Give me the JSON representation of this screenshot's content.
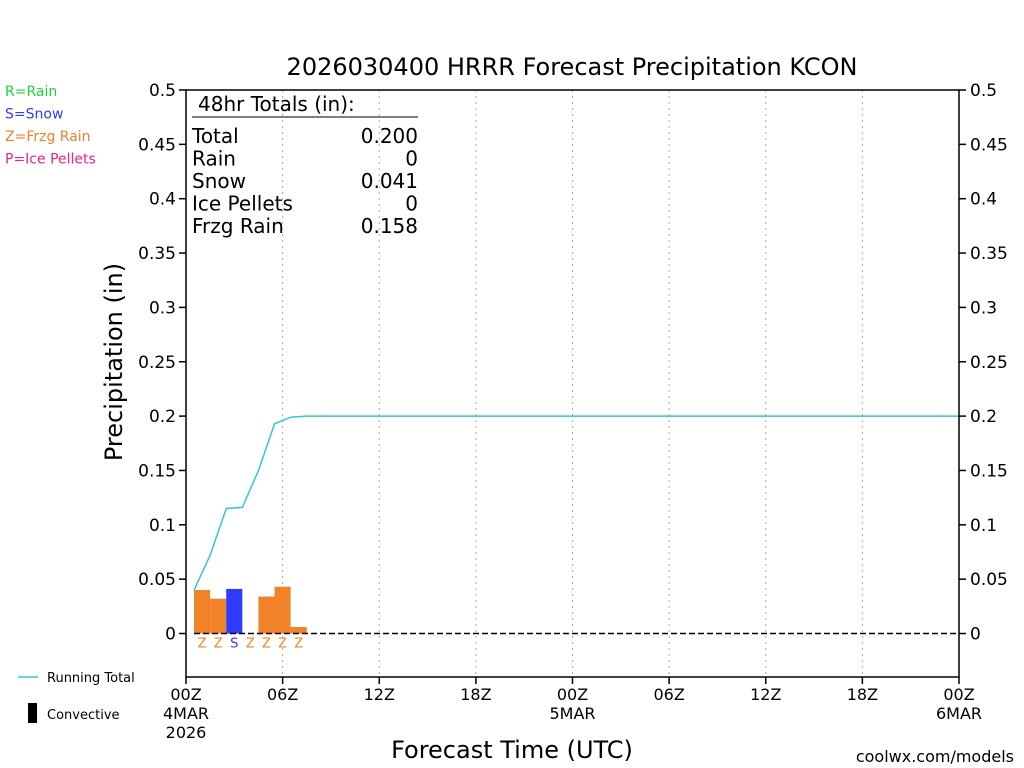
{
  "chart_data": {
    "type": "bar",
    "title": "2026030400 HRRR Forecast Precipitation KCON",
    "xlabel": "Forecast Time (UTC)",
    "ylabel": "Precipitation (in)",
    "ylim": [
      -0.04,
      0.5
    ],
    "yticks": [
      0,
      0.05,
      0.1,
      0.15,
      0.2,
      0.25,
      0.3,
      0.35,
      0.4,
      0.45,
      0.5
    ],
    "ytick_labels": [
      "0",
      "0.05",
      "0.1",
      "0.15",
      "0.2",
      "0.25",
      "0.3",
      "0.35",
      "0.4",
      "0.45",
      "0.5"
    ],
    "xlim": [
      0,
      48
    ],
    "xticks": [
      {
        "hour": 0,
        "lines": [
          "00Z",
          "4MAR",
          "2026"
        ]
      },
      {
        "hour": 6,
        "lines": [
          "06Z"
        ]
      },
      {
        "hour": 12,
        "lines": [
          "12Z"
        ]
      },
      {
        "hour": 18,
        "lines": [
          "18Z"
        ]
      },
      {
        "hour": 24,
        "lines": [
          "00Z",
          "5MAR"
        ]
      },
      {
        "hour": 30,
        "lines": [
          "06Z"
        ]
      },
      {
        "hour": 36,
        "lines": [
          "12Z"
        ]
      },
      {
        "hour": 42,
        "lines": [
          "18Z"
        ]
      },
      {
        "hour": 48,
        "lines": [
          "00Z",
          "6MAR"
        ]
      }
    ],
    "grid": "vertical dotted",
    "bars": [
      {
        "hour": 1,
        "value": 0.04,
        "type": "Z"
      },
      {
        "hour": 2,
        "value": 0.032,
        "type": "Z"
      },
      {
        "hour": 3,
        "value": 0.041,
        "type": "S"
      },
      {
        "hour": 4,
        "value": 0.0,
        "type": "Z"
      },
      {
        "hour": 5,
        "value": 0.034,
        "type": "Z"
      },
      {
        "hour": 6,
        "value": 0.043,
        "type": "Z"
      },
      {
        "hour": 7,
        "value": 0.006,
        "type": "Z"
      }
    ],
    "running_total": {
      "hours": [
        0.5,
        1.5,
        2.5,
        3.5,
        4.5,
        5.5,
        6.5,
        7.5,
        48
      ],
      "values": [
        0.04,
        0.072,
        0.115,
        0.116,
        0.15,
        0.193,
        0.199,
        0.2,
        0.2
      ]
    },
    "colors": {
      "rain": "#22d13a",
      "snow": "#2d3cff",
      "frzg_rain": "#f08228",
      "ice_pellets": "#e6238c",
      "running_total": "#35c8c8",
      "convective": "#000000",
      "credit": "#d2282d"
    }
  },
  "legend_types": [
    {
      "key": "R",
      "label": "R=Rain",
      "color": "#22d13a"
    },
    {
      "key": "S",
      "label": "S=Snow",
      "color": "#2d3cff"
    },
    {
      "key": "Z",
      "label": "Z=Frzg Rain",
      "color": "#f08228"
    },
    {
      "key": "P",
      "label": "P=Ice Pellets",
      "color": "#e6238c"
    }
  ],
  "totals": {
    "heading": "48hr Totals (in):",
    "rows": [
      {
        "label": "Total",
        "value": "0.200"
      },
      {
        "label": "Rain",
        "value": "0"
      },
      {
        "label": "Snow",
        "value": "0.041"
      },
      {
        "label": "Ice Pellets",
        "value": "0"
      },
      {
        "label": "Frzg Rain",
        "value": "0.158"
      }
    ]
  },
  "legend_lines": {
    "running_total": "Running Total",
    "convective": "Convective"
  },
  "credit": "coolwx.com/models"
}
